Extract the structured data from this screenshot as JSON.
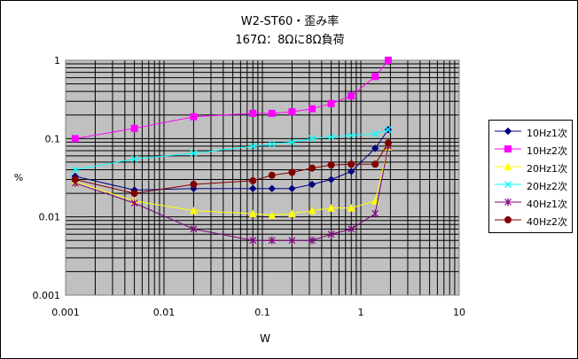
{
  "chart_data": {
    "type": "line",
    "title": "W2-ST60・歪み率",
    "subtitle": "167Ω：8Ωに8Ω負荷",
    "xlabel": "W",
    "ylabel": "%",
    "xscale": "log",
    "yscale": "log",
    "xlim": [
      0.001,
      10
    ],
    "ylim": [
      0.001,
      1
    ],
    "x_ticks": [
      "0.001",
      "0.01",
      "0.1",
      "1",
      "10"
    ],
    "y_ticks": [
      "0.001",
      "0.01",
      "0.1",
      "1"
    ],
    "grid": true,
    "legend_position": "right",
    "series": [
      {
        "name": "10Hz1次",
        "color": "#000080",
        "marker": "diamond",
        "x": [
          0.00125,
          0.005,
          0.02,
          0.08,
          0.125,
          0.2,
          0.32,
          0.5,
          0.8,
          1.4,
          1.9
        ],
        "y": [
          0.033,
          0.022,
          0.023,
          0.023,
          0.023,
          0.023,
          0.026,
          0.03,
          0.038,
          0.075,
          0.13
        ]
      },
      {
        "name": "10Hz2次",
        "color": "#ff00ff",
        "marker": "square",
        "x": [
          0.00125,
          0.005,
          0.02,
          0.08,
          0.125,
          0.2,
          0.32,
          0.5,
          0.8,
          1.4,
          1.9
        ],
        "y": [
          0.1,
          0.135,
          0.19,
          0.21,
          0.21,
          0.22,
          0.24,
          0.28,
          0.35,
          0.62,
          1.0
        ]
      },
      {
        "name": "20Hz1次",
        "color": "#ffff00",
        "marker": "triangle",
        "x": [
          0.00125,
          0.005,
          0.02,
          0.08,
          0.125,
          0.2,
          0.32,
          0.5,
          0.8,
          1.4,
          1.9
        ],
        "y": [
          0.028,
          0.016,
          0.012,
          0.011,
          0.0105,
          0.011,
          0.012,
          0.013,
          0.013,
          0.016,
          0.078
        ]
      },
      {
        "name": "20Hz2次",
        "color": "#00ffff",
        "marker": "x",
        "x": [
          0.00125,
          0.005,
          0.02,
          0.08,
          0.125,
          0.2,
          0.32,
          0.5,
          0.8,
          1.4,
          1.9
        ],
        "y": [
          0.04,
          0.055,
          0.065,
          0.08,
          0.085,
          0.09,
          0.1,
          0.105,
          0.11,
          0.115,
          0.13
        ]
      },
      {
        "name": "40Hz1次",
        "color": "#800080",
        "marker": "star",
        "x": [
          0.00125,
          0.005,
          0.02,
          0.08,
          0.125,
          0.2,
          0.32,
          0.5,
          0.8,
          1.4,
          1.9
        ],
        "y": [
          0.027,
          0.015,
          0.007,
          0.005,
          0.005,
          0.005,
          0.005,
          0.006,
          0.007,
          0.011,
          0.08
        ]
      },
      {
        "name": "40Hz2次",
        "color": "#800000",
        "marker": "circle",
        "x": [
          0.00125,
          0.005,
          0.02,
          0.08,
          0.125,
          0.2,
          0.32,
          0.5,
          0.8,
          1.4,
          1.9
        ],
        "y": [
          0.03,
          0.02,
          0.026,
          0.029,
          0.034,
          0.037,
          0.042,
          0.046,
          0.047,
          0.047,
          0.088
        ]
      }
    ]
  }
}
